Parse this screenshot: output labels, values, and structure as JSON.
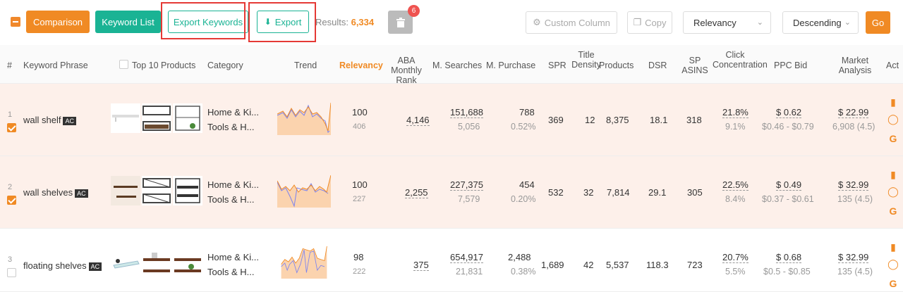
{
  "toolbar": {
    "comparison": "Comparison",
    "keyword_list": "Keyword List",
    "export_keywords": "Export Keywords",
    "export": "Export",
    "results_label": "Results:",
    "results_value": "6,334",
    "trash_badge": "6",
    "custom_column": "Custom Column",
    "copy": "Copy",
    "sort_by": "Relevancy",
    "order": "Descending",
    "go": "Go"
  },
  "colors": {
    "accent": "#f08a24",
    "teal": "#1ab394",
    "highlight": "#e53935",
    "row_selected": "#fdf0ea"
  },
  "header": {
    "num": "#",
    "keyword": "Keyword Phrase",
    "top10": "Top 10 Products",
    "category": "Category",
    "trend": "Trend",
    "relevancy": "Relevancy",
    "aba": "ABA Monthly Rank",
    "msearches": "M. Searches",
    "mpurchase": "M. Purchase",
    "spr": "SPR",
    "title_density": "Title Density",
    "products": "Products",
    "dsr": "DSR",
    "sp_asins": "SP ASINS",
    "click_conc": "Click Concentration",
    "ppc": "PPC Bid",
    "market": "Market Analysis",
    "act": "Act"
  },
  "rows": [
    {
      "num": "1",
      "keyword": "wall shelf",
      "ac": "AC",
      "checked": true,
      "cat1": "Home & Ki...",
      "cat2": "Tools & H...",
      "relevancy": "100",
      "relevancy_sub": "406",
      "aba": "4,146",
      "msearches": "151,688",
      "msearches_sub": "5,056",
      "mpurchase": "788",
      "mpurchase_sub": "0.52%",
      "spr": "369",
      "title_density": "12",
      "products": "8,375",
      "dsr": "18.1",
      "sp_asins": "318",
      "click": "21.8%",
      "click_sub": "9.1%",
      "ppc": "$ 0.62",
      "ppc_range": "$0.46 - $0.79",
      "market": "$ 22.99",
      "market_sub": "6,908 (4.5)"
    },
    {
      "num": "2",
      "keyword": "wall shelves",
      "ac": "AC",
      "checked": true,
      "cat1": "Home & Ki...",
      "cat2": "Tools & H...",
      "relevancy": "100",
      "relevancy_sub": "227",
      "aba": "2,255",
      "msearches": "227,375",
      "msearches_sub": "7,579",
      "mpurchase": "454",
      "mpurchase_sub": "0.20%",
      "spr": "532",
      "title_density": "32",
      "products": "7,814",
      "dsr": "29.1",
      "sp_asins": "305",
      "click": "22.5%",
      "click_sub": "8.4%",
      "ppc": "$ 0.49",
      "ppc_range": "$0.37 - $0.61",
      "market": "$ 32.99",
      "market_sub": "135 (4.5)"
    },
    {
      "num": "3",
      "keyword": "floating shelves",
      "ac": "AC",
      "checked": false,
      "cat1": "Home & Ki...",
      "cat2": "Tools & H...",
      "relevancy": "98",
      "relevancy_sub": "222",
      "aba": "375",
      "msearches": "654,917",
      "msearches_sub": "21,831",
      "mpurchase": "2,488",
      "mpurchase_sub": "0.38%",
      "spr": "1,689",
      "title_density": "42",
      "products": "5,537",
      "dsr": "118.3",
      "sp_asins": "723",
      "click": "20.7%",
      "click_sub": "5.5%",
      "ppc": "$ 0.68",
      "ppc_range": "$0.5 - $0.85",
      "market": "$ 32.99",
      "market_sub": "135 (4.5)"
    }
  ]
}
